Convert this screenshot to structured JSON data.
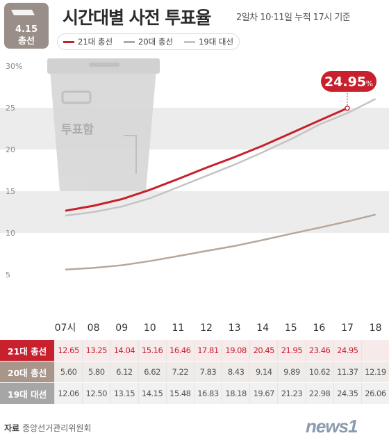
{
  "badge": {
    "line1": "4.15",
    "line2": "총선"
  },
  "title": "시간대별 사전 투표율",
  "subtitle": "2일차 10·11일 누적 17시 기준",
  "ballot_box_label": "투표함",
  "colors": {
    "s21": "#c8202c",
    "s20": "#b7a79a",
    "s19": "#c4c4c4",
    "band": "#ececec"
  },
  "chart_data": {
    "type": "line",
    "title": "시간대별 사전 투표율",
    "x": [
      "07시",
      "08",
      "09",
      "10",
      "11",
      "12",
      "13",
      "14",
      "15",
      "16",
      "17",
      "18"
    ],
    "ylim": [
      0,
      30
    ],
    "yticks": [
      "5",
      "10",
      "15",
      "20",
      "25",
      "30%"
    ],
    "series": [
      {
        "name": "21대 총선",
        "values": [
          12.65,
          13.25,
          14.04,
          15.16,
          16.46,
          17.81,
          19.08,
          20.45,
          21.95,
          23.46,
          24.95,
          null
        ]
      },
      {
        "name": "20대 총선",
        "values": [
          5.6,
          5.8,
          6.12,
          6.62,
          7.22,
          7.83,
          8.43,
          9.14,
          9.89,
          10.62,
          11.37,
          12.19
        ]
      },
      {
        "name": "19대 대선",
        "values": [
          12.06,
          12.5,
          13.15,
          14.15,
          15.48,
          16.83,
          18.18,
          19.67,
          21.23,
          22.98,
          24.35,
          26.06
        ]
      }
    ],
    "annotation": {
      "main": "24.95",
      "unit": "%"
    }
  },
  "table": {
    "rows": [
      {
        "label": "21대 총선",
        "cells": [
          "12.65",
          "13.25",
          "14.04",
          "15.16",
          "16.46",
          "17.81",
          "19.08",
          "20.45",
          "21.95",
          "23.46",
          "24.95",
          ""
        ]
      },
      {
        "label": "20대 총선",
        "cells": [
          "5.60",
          "5.80",
          "6.12",
          "6.62",
          "7.22",
          "7.83",
          "8.43",
          "9.14",
          "9.89",
          "10.62",
          "11.37",
          "12.19"
        ]
      },
      {
        "label": "19대 대선",
        "cells": [
          "12.06",
          "12.50",
          "13.15",
          "14.15",
          "15.48",
          "16.83",
          "18.18",
          "19.67",
          "21.23",
          "22.98",
          "24.35",
          "26.06"
        ]
      }
    ]
  },
  "source": {
    "label": "자료",
    "text": "중앙선거관리위원회"
  },
  "logo": "news1"
}
